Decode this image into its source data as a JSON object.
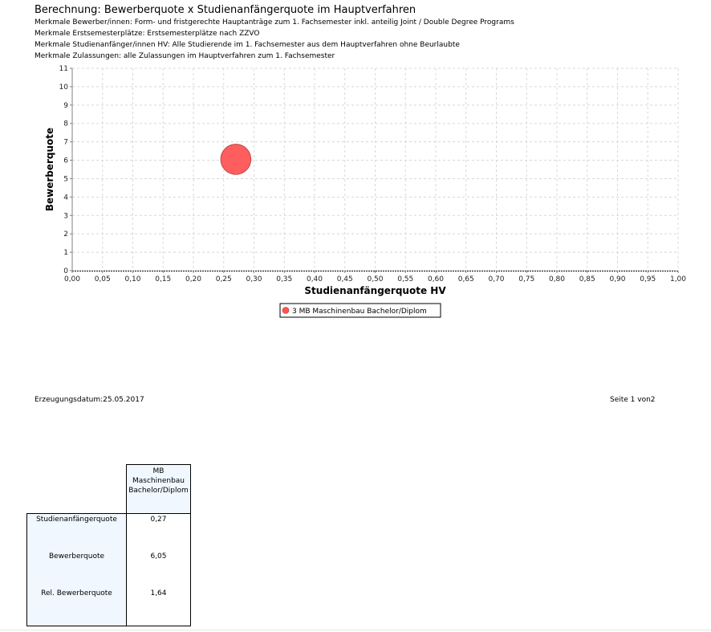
{
  "header": {
    "title": "Berechnung: Bewerberquote x Studienanfängerquote im Hauptverfahren",
    "meta_lines": [
      "Merkmale Bewerber/innen: Form- und fristgerechte Hauptanträge zum 1. Fachsemester inkl. anteilig Joint / Double Degree Programs",
      "Merkmale Erstsemesterplätze: Erstsemesterplätze nach ZZVO",
      "Merkmale Studienanfänger/innen HV: Alle Studierende im 1. Fachsemester aus dem Hauptverfahren ohne Beurlaubte",
      "Merkmale Zulassungen: alle Zulassungen im Hauptverfahren zum 1. Fachsemester"
    ]
  },
  "chart_data": {
    "type": "scatter",
    "xlabel": "Studienanfängerquote HV",
    "ylabel": "Bewerberquote",
    "xlim": [
      0,
      1
    ],
    "ylim": [
      0,
      11
    ],
    "x_ticks": [
      "0,00",
      "0,05",
      "0,10",
      "0,15",
      "0,20",
      "0,25",
      "0,30",
      "0,35",
      "0,40",
      "0,45",
      "0,50",
      "0,55",
      "0,60",
      "0,65",
      "0,70",
      "0,75",
      "0,80",
      "0,85",
      "0,90",
      "0,95",
      "1,00"
    ],
    "y_ticks": [
      "0",
      "1",
      "2",
      "3",
      "4",
      "5",
      "6",
      "7",
      "8",
      "9",
      "10",
      "11"
    ],
    "grid": true,
    "legend_position": "bottom-center",
    "series": [
      {
        "name": "3 MB Maschinenbau Bachelor/Diplom",
        "color": "#ff5555",
        "x": 0.27,
        "y": 6.05,
        "size": 1.64
      }
    ]
  },
  "footer": {
    "date": "Erzeugungsdatum:25.05.2017",
    "page": "Seite 1 von2"
  },
  "table": {
    "column_header_lines": [
      "MB",
      "Maschinenbau",
      "Bachelor/Diplom"
    ],
    "rows": [
      {
        "label": "Studienanfängerquote",
        "value": "0,27"
      },
      {
        "label": "Bewerberquote",
        "value": "6,05"
      },
      {
        "label": "Rel. Bewerberquote",
        "value": "1,64"
      }
    ]
  }
}
